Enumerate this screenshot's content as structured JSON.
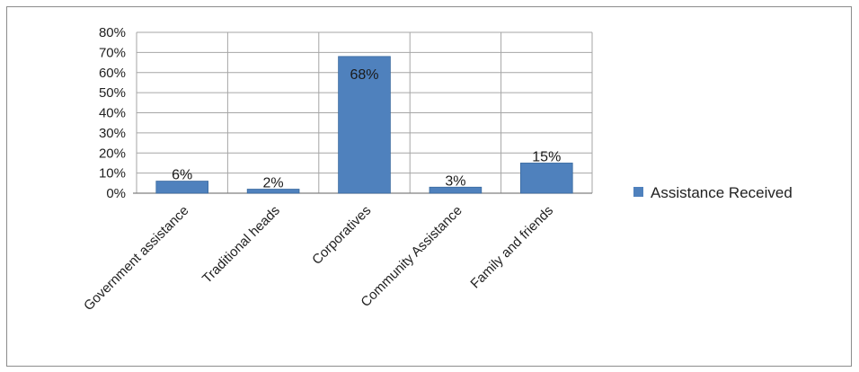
{
  "chart_data": {
    "type": "bar",
    "categories": [
      "Government assistance",
      "Traditional heads",
      "Corporatives",
      "Community Assistance",
      "Family and friends"
    ],
    "series": [
      {
        "name": "Assistance Received",
        "values": [
          6,
          2,
          68,
          3,
          15
        ],
        "data_labels": [
          "6%",
          "2%",
          "68%",
          "3%",
          "15%"
        ]
      }
    ],
    "y_ticks": [
      "0%",
      "10%",
      "20%",
      "30%",
      "40%",
      "50%",
      "60%",
      "70%",
      "80%"
    ],
    "ylim": [
      0,
      80
    ],
    "grid": true,
    "legend_position": "right",
    "title": "",
    "xlabel": "",
    "ylabel": ""
  },
  "colors": {
    "bar": "#4f81bd",
    "bar_edge": "#3a6a9f",
    "grid": "#a6a6a6",
    "axis": "#808080"
  }
}
